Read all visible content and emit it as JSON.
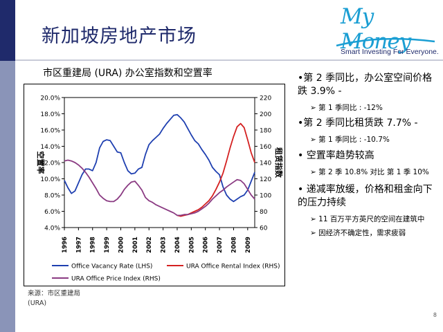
{
  "slide": {
    "title": "新加坡房地产市场",
    "page_number": "8",
    "logo": {
      "name": "My Money",
      "tagline": "Smart Investing For Everyone."
    }
  },
  "chart": {
    "heading": "市区重建局 (URA) 办公室指数和空置率",
    "source_line1": "来源：市区重建局",
    "source_line2": "(URA)"
  },
  "chart_data": {
    "type": "line",
    "x_ticks": [
      "1996",
      "1997",
      "1998",
      "1999",
      "2000",
      "2001",
      "2002",
      "2003",
      "2004",
      "2005",
      "2006",
      "2007",
      "2008",
      "2009"
    ],
    "xlim": [
      1996,
      2009.5
    ],
    "ylabel": "空置率",
    "y2label": "租赁指数",
    "ylim": [
      4.0,
      20.0
    ],
    "y_ticks": [
      "4.0%",
      "6.0%",
      "8.0%",
      "10.0%",
      "12.0%",
      "14.0%",
      "16.0%",
      "18.0%",
      "20.0%"
    ],
    "y2lim": [
      60,
      220
    ],
    "y2_ticks": [
      "60",
      "80",
      "100",
      "120",
      "140",
      "160",
      "180",
      "200",
      "220"
    ],
    "grid": false,
    "legend_position": "bottom",
    "series": [
      {
        "name": "Office Vacancy Rate (LHS)",
        "axis": "left",
        "color": "#1e3fb0",
        "x": [
          1996,
          1996.25,
          1996.5,
          1996.75,
          1997,
          1997.25,
          1997.5,
          1997.75,
          1998,
          1998.25,
          1998.5,
          1998.75,
          1999,
          1999.25,
          1999.5,
          1999.75,
          2000,
          2000.25,
          2000.5,
          2000.75,
          2001,
          2001.25,
          2001.5,
          2001.75,
          2002,
          2002.25,
          2002.5,
          2002.75,
          2003,
          2003.25,
          2003.5,
          2003.75,
          2004,
          2004.25,
          2004.5,
          2004.75,
          2005,
          2005.25,
          2005.5,
          2005.75,
          2006,
          2006.25,
          2006.5,
          2006.75,
          2007,
          2007.25,
          2007.5,
          2007.75,
          2008,
          2008.25,
          2008.5,
          2008.75,
          2009,
          2009.25,
          2009.5
        ],
        "y": [
          9.8,
          8.9,
          8.2,
          8.5,
          9.5,
          10.5,
          11.2,
          11.2,
          11.0,
          12.0,
          13.8,
          14.6,
          14.8,
          14.7,
          14.0,
          13.3,
          13.2,
          12.0,
          11.0,
          10.6,
          10.7,
          11.2,
          11.4,
          13.0,
          14.2,
          14.7,
          15.1,
          15.5,
          16.2,
          16.8,
          17.3,
          17.8,
          17.9,
          17.5,
          17.0,
          16.2,
          15.4,
          14.7,
          14.3,
          13.6,
          13.0,
          12.3,
          11.4,
          10.9,
          10.5,
          9.0,
          8.0,
          7.5,
          7.2,
          7.5,
          7.8,
          8.0,
          8.6,
          9.7,
          10.8
        ]
      },
      {
        "name": "URA Office Rental Index (RHS)",
        "axis": "right",
        "color": "#d42020",
        "x": [
          2004,
          2004.25,
          2004.5,
          2004.75,
          2005,
          2005.25,
          2005.5,
          2005.75,
          2006,
          2006.25,
          2006.5,
          2006.75,
          2007,
          2007.25,
          2007.5,
          2007.75,
          2008,
          2008.25,
          2008.5,
          2008.75,
          2009,
          2009.25,
          2009.5
        ],
        "y": [
          75,
          74,
          75,
          76,
          78,
          80,
          82,
          85,
          89,
          93,
          99,
          107,
          116,
          127,
          142,
          158,
          172,
          184,
          188,
          183,
          168,
          152,
          140
        ]
      },
      {
        "name": "URA Office Price Index (RHS)",
        "axis": "right",
        "color": "#8a3a82",
        "x": [
          1996,
          1996.25,
          1996.5,
          1996.75,
          1997,
          1997.25,
          1997.5,
          1997.75,
          1998,
          1998.25,
          1998.5,
          1998.75,
          1999,
          1999.25,
          1999.5,
          1999.75,
          2000,
          2000.25,
          2000.5,
          2000.75,
          2001,
          2001.25,
          2001.5,
          2001.75,
          2002,
          2002.25,
          2002.5,
          2002.75,
          2003,
          2003.25,
          2003.5,
          2003.75,
          2004,
          2004.25,
          2004.5,
          2004.75,
          2005,
          2005.25,
          2005.5,
          2005.75,
          2006,
          2006.25,
          2006.5,
          2006.75,
          2007,
          2007.25,
          2007.5,
          2007.75,
          2008,
          2008.25,
          2008.5,
          2008.75,
          2009,
          2009.25,
          2009.5
        ],
        "y": [
          142,
          143,
          142,
          140,
          137,
          133,
          128,
          122,
          115,
          108,
          100,
          96,
          93,
          92,
          92,
          95,
          100,
          107,
          112,
          116,
          117,
          112,
          106,
          97,
          93,
          91,
          88,
          86,
          84,
          82,
          80,
          78,
          75,
          75,
          76,
          76,
          77,
          78,
          80,
          83,
          86,
          90,
          95,
          99,
          103,
          106,
          110,
          113,
          116,
          119,
          118,
          114,
          107,
          100,
          95
        ]
      }
    ]
  },
  "bullets": [
    {
      "level": 1,
      "text": "•第 2 季同比，办公室空间价格跌  3.9% -"
    },
    {
      "level": 2,
      "marker": "➢",
      "text": "第 1 季同比 : -12%"
    },
    {
      "level": 1,
      "text": "•第 2 季同比租赁跌  7.7% -"
    },
    {
      "level": 2,
      "marker": "➢",
      "text": "第 1 季同比 : -10.7%"
    },
    {
      "level": 1,
      "text": "•  空置率趋势较高"
    },
    {
      "level": 2,
      "marker": "➢",
      "text": "第 2 季  10.8% 对比 第 1 季  10%"
    },
    {
      "level": 1,
      "text": "•  递减率放缓，价格和租金向下的压力持续"
    },
    {
      "level": 2,
      "marker": "➢",
      "text": "11 百万平方英尺的空间在建筑中"
    },
    {
      "level": 2,
      "marker": "➢",
      "text": "因经济不确定性，需求疲弱"
    }
  ]
}
